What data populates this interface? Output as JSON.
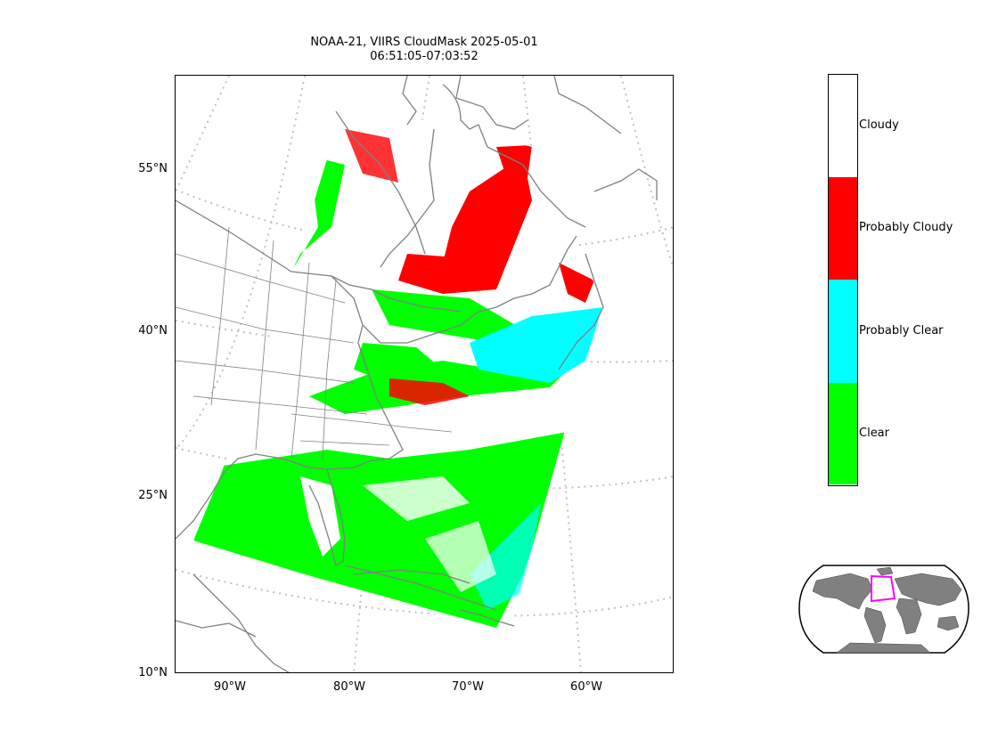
{
  "title": {
    "line1": "NOAA-21, VIIRS CloudMask 2025-05-01",
    "line2": "06:51:05-07:03:52"
  },
  "axes": {
    "lat_labels": [
      "55°N",
      "40°N",
      "25°N",
      "10°N"
    ],
    "lon_labels": [
      "90°W",
      "80°W",
      "70°W",
      "60°W"
    ]
  },
  "legend": {
    "categories": [
      {
        "label": "Cloudy",
        "color": "#ffffff"
      },
      {
        "label": "Probably Cloudy",
        "color": "#ff0000"
      },
      {
        "label": "Probably Clear",
        "color": "#00ffff"
      },
      {
        "label": "Clear",
        "color": "#00ff00"
      }
    ]
  },
  "colors": {
    "coastline": "#808080",
    "graticule": "#c0c0c0",
    "inset_land": "#808080",
    "inset_box": "#ff00ff"
  }
}
